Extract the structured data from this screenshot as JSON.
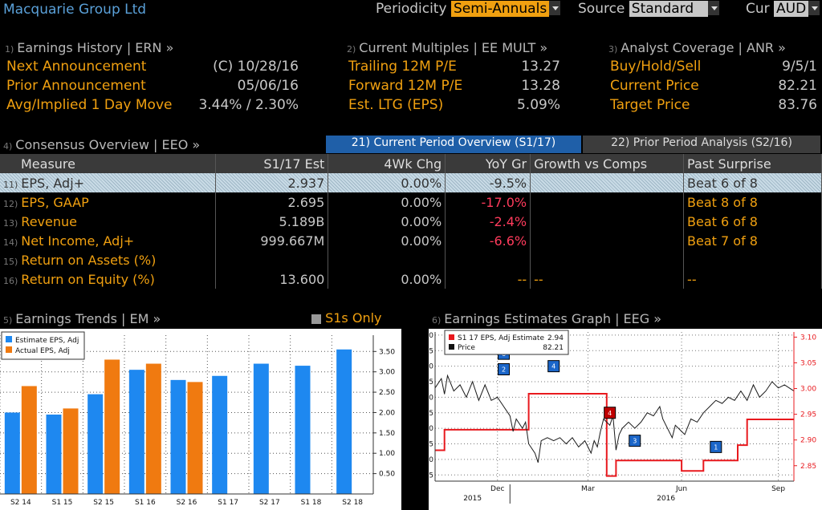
{
  "header": {
    "company": "Macquarie Group Ltd",
    "periodicity_label": "Periodicity",
    "periodicity_value": "Semi-Annuals",
    "source_label": "Source",
    "source_value": "Standard",
    "cur_label": "Cur",
    "cur_value": "AUD"
  },
  "earnings_history": {
    "num": "1)",
    "title": "Earnings History | ERN »",
    "rows": [
      {
        "label": "Next Announcement",
        "value": "(C)  10/28/16"
      },
      {
        "label": "Prior Announcement",
        "value": "05/06/16"
      },
      {
        "label": "Avg/Implied 1 Day Move",
        "value": "3.44% / 2.30%"
      }
    ]
  },
  "current_multiples": {
    "num": "2)",
    "title": "Current Multiples | EE MULT »",
    "rows": [
      {
        "label": "Trailing 12M P/E",
        "value": "13.27"
      },
      {
        "label": "Forward 12M P/E",
        "value": "13.28"
      },
      {
        "label": "Est. LTG (EPS)",
        "value": "5.09%"
      }
    ]
  },
  "analyst_coverage": {
    "num": "3)",
    "title": "Analyst Coverage | ANR »",
    "rows": [
      {
        "label": "Buy/Hold/Sell",
        "value": "9/5/1"
      },
      {
        "label": "Current Price",
        "value": "82.21"
      },
      {
        "label": "Target Price",
        "value": "83.76"
      }
    ]
  },
  "consensus": {
    "num": "4)",
    "title": "Consensus Overview | EEO »",
    "tab_current": "21) Current Period Overview (S1/17)",
    "tab_prior": "22) Prior Period Analysis (S2/16)",
    "columns": [
      "Measure",
      "S1/17 Est",
      "4Wk Chg",
      "YoY Gr",
      "Growth vs Comps",
      "Past Surprise"
    ],
    "rows": [
      {
        "num": "11)",
        "measure": "EPS, Adj+",
        "est": "2.937",
        "chg": "0.00%",
        "yoy": "-9.5%",
        "comps": "",
        "surprise": "Beat 6 of 8"
      },
      {
        "num": "12)",
        "measure": "EPS, GAAP",
        "est": "2.695",
        "chg": "0.00%",
        "yoy": "-17.0%",
        "comps": "",
        "surprise": "Beat 8 of 8"
      },
      {
        "num": "13)",
        "measure": "Revenue",
        "est": "5.189B",
        "chg": "0.00%",
        "yoy": "-2.4%",
        "comps": "",
        "surprise": "Beat 6 of 8"
      },
      {
        "num": "14)",
        "measure": "Net Income, Adj+",
        "est": "999.667M",
        "chg": "0.00%",
        "yoy": "-6.6%",
        "comps": "",
        "surprise": "Beat 7 of 8"
      },
      {
        "num": "15)",
        "measure": "Return on Assets (%)",
        "est": "",
        "chg": "",
        "yoy": "",
        "comps": "",
        "surprise": ""
      },
      {
        "num": "16)",
        "measure": "Return on Equity (%)",
        "est": "13.600",
        "chg": "0.00%",
        "yoy": "--",
        "comps": "--",
        "surprise": "--"
      }
    ]
  },
  "trends": {
    "num": "5)",
    "title": "Earnings Trends | EM »",
    "toggle": "S1s Only",
    "legend_estimate": "Estimate EPS, Adj",
    "legend_actual": "Actual EPS, Adj"
  },
  "estimates_graph": {
    "num": "6)",
    "title": "Earnings Estimates Graph | EEG »",
    "legend_estimate": "S1 17 EPS, Adj Estimate",
    "legend_estimate_value": "2.94",
    "legend_price": "Price",
    "legend_price_value": "82.21"
  },
  "chart_data": [
    {
      "type": "bar",
      "categories": [
        "S2 14",
        "S1 15",
        "S2 15",
        "S1 16",
        "S2 16",
        "S1 17",
        "S2 17",
        "S1 18",
        "S2 18"
      ],
      "series": [
        {
          "name": "Estimate EPS, Adj",
          "values": [
            2.0,
            1.95,
            2.45,
            3.05,
            2.8,
            2.9,
            3.2,
            3.15,
            3.55
          ],
          "color": "#1e88f0"
        },
        {
          "name": "Actual EPS, Adj",
          "values": [
            2.65,
            2.1,
            3.3,
            3.2,
            2.75,
            null,
            null,
            null,
            null
          ],
          "color": "#f07a10"
        }
      ],
      "yticks": [
        "0.50",
        "1.00",
        "1.50",
        "2.00",
        "2.50",
        "3.00",
        "3.50"
      ],
      "ylim": [
        0,
        3.9
      ]
    },
    {
      "type": "line",
      "x_labels": [
        "Dec",
        "Mar",
        "Jun",
        "Sep"
      ],
      "year_labels": [
        "2015",
        "2016"
      ],
      "left_ticks": [
        "55",
        "60",
        "65",
        "70",
        "75",
        "80",
        "85",
        "90",
        "95",
        "100"
      ],
      "right_ticks": [
        "2.85",
        "2.90",
        "2.95",
        "3.00",
        "3.05",
        "3.10"
      ],
      "left_ylim": [
        53,
        101
      ],
      "right_ylim": [
        2.82,
        3.11
      ],
      "series": [
        {
          "name": "S1 17 EPS, Adj Estimate",
          "axis": "right",
          "color": "#e8191e",
          "points": [
            [
              0,
              2.88
            ],
            [
              3,
              2.88
            ],
            [
              3,
              2.92
            ],
            [
              30,
              2.92
            ],
            [
              30,
              2.99
            ],
            [
              55,
              2.99
            ],
            [
              55,
              2.83
            ],
            [
              58,
              2.83
            ],
            [
              58,
              2.86
            ],
            [
              79,
              2.86
            ],
            [
              79,
              2.84
            ],
            [
              86,
              2.84
            ],
            [
              86,
              2.86
            ],
            [
              97,
              2.86
            ],
            [
              97,
              2.89
            ],
            [
              100,
              2.89
            ],
            [
              100,
              2.94
            ],
            [
              115,
              2.94
            ]
          ]
        },
        {
          "name": "Price",
          "axis": "left",
          "color": "#1a1a1a",
          "points": [
            [
              0,
              83
            ],
            [
              2,
              86
            ],
            [
              3,
              81
            ],
            [
              4,
              87
            ],
            [
              6,
              82
            ],
            [
              8,
              84
            ],
            [
              10,
              80
            ],
            [
              12,
              85
            ],
            [
              14,
              79
            ],
            [
              16,
              84
            ],
            [
              18,
              79
            ],
            [
              20,
              80
            ],
            [
              22,
              77
            ],
            [
              24,
              74
            ],
            [
              25,
              69
            ],
            [
              26,
              73
            ],
            [
              28,
              70
            ],
            [
              29,
              72
            ],
            [
              30,
              65
            ],
            [
              32,
              62
            ],
            [
              33,
              59
            ],
            [
              34,
              66
            ],
            [
              36,
              67
            ],
            [
              38,
              66
            ],
            [
              40,
              67
            ],
            [
              42,
              65
            ],
            [
              44,
              67
            ],
            [
              46,
              64
            ],
            [
              48,
              66
            ],
            [
              50,
              62
            ],
            [
              51,
              66
            ],
            [
              52,
              64
            ],
            [
              53,
              69
            ],
            [
              54,
              73
            ],
            [
              55,
              72
            ],
            [
              56,
              71
            ],
            [
              57,
              74
            ],
            [
              58,
              63
            ],
            [
              59,
              68
            ],
            [
              60,
              70
            ],
            [
              62,
              72
            ],
            [
              64,
              70
            ],
            [
              66,
              72
            ],
            [
              68,
              75
            ],
            [
              70,
              74
            ],
            [
              72,
              77
            ],
            [
              73,
              73
            ],
            [
              74,
              71
            ],
            [
              76,
              67
            ],
            [
              77,
              71
            ],
            [
              78,
              70
            ],
            [
              80,
              68
            ],
            [
              82,
              73
            ],
            [
              84,
              72
            ],
            [
              86,
              75
            ],
            [
              88,
              77
            ],
            [
              90,
              79
            ],
            [
              92,
              78
            ],
            [
              94,
              80
            ],
            [
              96,
              79
            ],
            [
              98,
              82
            ],
            [
              100,
              79
            ],
            [
              102,
              84
            ],
            [
              104,
              80
            ],
            [
              106,
              82
            ],
            [
              108,
              85
            ],
            [
              110,
              83
            ],
            [
              112,
              84
            ],
            [
              115,
              82
            ]
          ]
        }
      ],
      "markers": [
        {
          "label": "6",
          "t": 22,
          "v": 94,
          "color": "#1b66c9"
        },
        {
          "label": "2",
          "t": 22,
          "v": 89,
          "color": "#1b66c9"
        },
        {
          "label": "4",
          "t": 38,
          "v": 90,
          "color": "#1b66c9"
        },
        {
          "label": "4",
          "t": 56,
          "v": 75,
          "color": "#c00000"
        },
        {
          "label": "3",
          "t": 64,
          "v": 66,
          "color": "#1b66c9"
        },
        {
          "label": "1",
          "t": 90,
          "v": 64,
          "color": "#1b66c9"
        }
      ]
    }
  ]
}
